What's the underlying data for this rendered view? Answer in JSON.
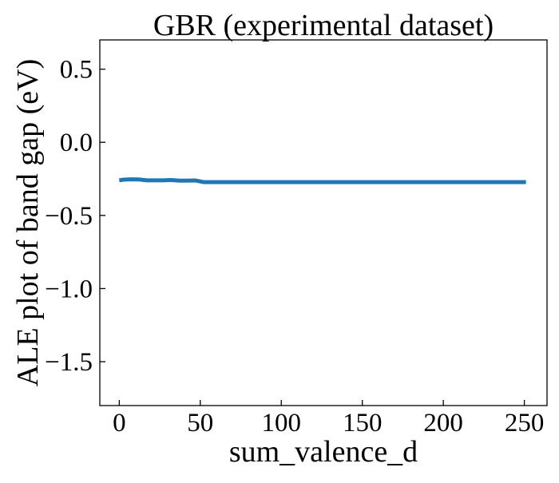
{
  "chart_data": {
    "type": "line",
    "title": "GBR (experimental dataset)",
    "xlabel": "sum_valence_d",
    "ylabel": "ALE plot of band gap (eV)",
    "xlim": [
      -12,
      264
    ],
    "ylim": [
      -1.8,
      0.7
    ],
    "xticks": [
      0,
      50,
      100,
      150,
      200,
      250
    ],
    "yticks": [
      0.5,
      0.0,
      -0.5,
      -1.0,
      -1.5
    ],
    "xtick_labels": [
      "0",
      "50",
      "100",
      "150",
      "200",
      "250"
    ],
    "ytick_labels": [
      "0.5",
      "0.0",
      "−0.5",
      "−1.0",
      "−1.5"
    ],
    "grid": false,
    "series": [
      {
        "color": "#1f77b4",
        "x": [
          0,
          3,
          7,
          12,
          17,
          22,
          27,
          32,
          37,
          42,
          47,
          52,
          57,
          100,
          150,
          200,
          251
        ],
        "y": [
          -0.26,
          -0.255,
          -0.253,
          -0.254,
          -0.26,
          -0.26,
          -0.26,
          -0.258,
          -0.262,
          -0.262,
          -0.261,
          -0.272,
          -0.272,
          -0.272,
          -0.272,
          -0.272,
          -0.272
        ]
      }
    ]
  }
}
